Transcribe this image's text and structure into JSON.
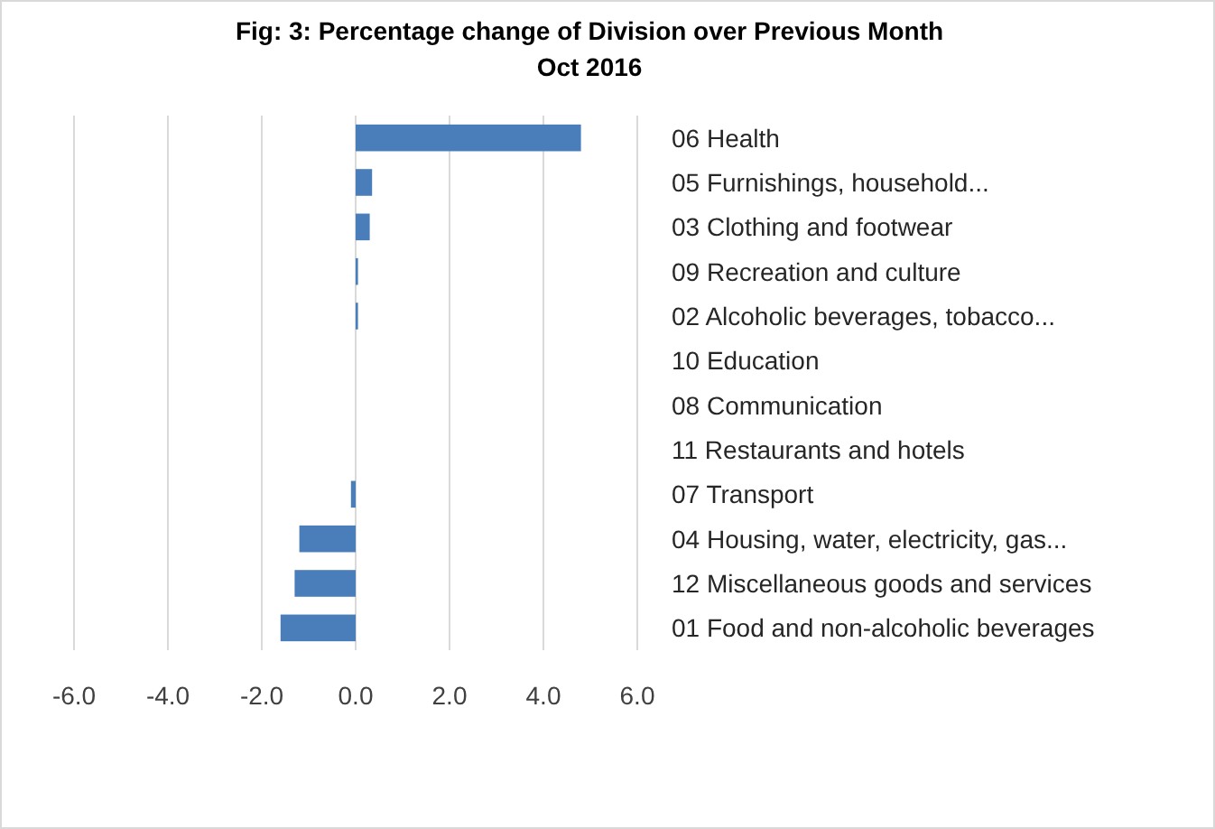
{
  "chart_data": {
    "type": "bar",
    "orientation": "horizontal",
    "title": "Fig: 3: Percentage change of Division over Previous Month",
    "subtitle": "Oct 2016",
    "categories": [
      "06 Health",
      "05 Furnishings, household...",
      "03 Clothing and footwear",
      "09 Recreation and culture",
      "02 Alcoholic beverages, tobacco...",
      "10 Education",
      "08 Communication",
      "11 Restaurants and hotels",
      "07 Transport",
      "04 Housing, water, electricity, gas...",
      "12 Miscellaneous goods and services",
      "01 Food and non-alcoholic beverages"
    ],
    "values": [
      4.8,
      0.35,
      0.3,
      0.05,
      0.05,
      0,
      0,
      0,
      -0.1,
      -1.2,
      -1.3,
      -1.6
    ],
    "color": "#4a7ebb",
    "xlim": [
      -6,
      6
    ],
    "xticks": [
      {
        "value": -6,
        "label": "-6.0"
      },
      {
        "value": -4,
        "label": "-4.0"
      },
      {
        "value": -2,
        "label": "-2.0"
      },
      {
        "value": 0,
        "label": "0.0"
      },
      {
        "value": 2,
        "label": "2.0"
      },
      {
        "value": 4,
        "label": "4.0"
      },
      {
        "value": 6,
        "label": "6.0"
      }
    ],
    "grid": "x"
  }
}
